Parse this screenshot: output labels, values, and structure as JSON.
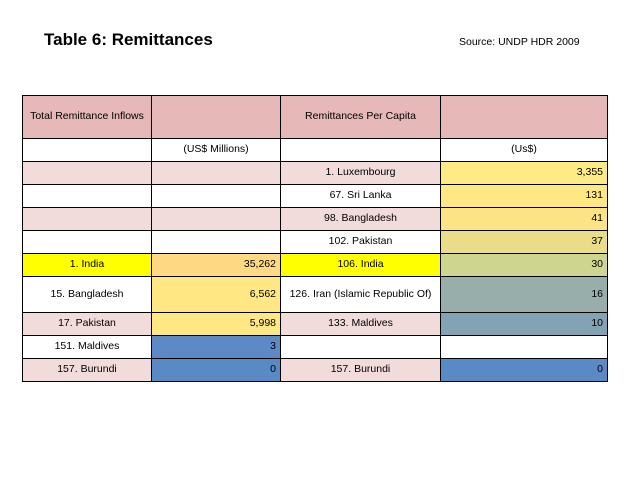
{
  "title": "Table 6: Remittances",
  "source": "Source: UNDP HDR 2009",
  "header": {
    "left_title": "Total Remittance Inflows",
    "right_title": "Remittances Per Capita",
    "left_unit": "(US$ Millions)",
    "right_unit": "(Us$)"
  },
  "rows": [
    {
      "c1": "",
      "c2": "",
      "c3": "1. Luxembourg",
      "c4": "3,355",
      "bg1": "#f2dcdb",
      "bg2": "#f2dcdb",
      "bg3": "#f2dcdb",
      "bg4": "#ffeb84"
    },
    {
      "c1": "",
      "c2": "",
      "c3": "67. Sri Lanka",
      "c4": "131",
      "bg1": "#ffffff",
      "bg2": "#ffffff",
      "bg3": "#ffffff",
      "bg4": "#ffe884"
    },
    {
      "c1": "",
      "c2": "",
      "c3": "98. Bangladesh",
      "c4": "41",
      "bg1": "#f2dcdb",
      "bg2": "#f2dcdb",
      "bg3": "#f2dcdb",
      "bg4": "#fbe386"
    },
    {
      "c1": "",
      "c2": "",
      "c3": "102. Pakistan",
      "c4": "37",
      "bg1": "#ffffff",
      "bg2": "#ffffff",
      "bg3": "#ffffff",
      "bg4": "#e9dd8a"
    },
    {
      "c1": "1. India",
      "c2": "35,262",
      "c3": "106. India",
      "c4": "30",
      "bg1": "#ffff00",
      "bg2": "#ffd884",
      "bg3": "#ffff00",
      "bg4": "#ced58e"
    },
    {
      "c1": "15. Bangladesh",
      "c2": "6,562",
      "c3": "126. Iran (Islamic Republic Of)",
      "c4": "16",
      "bg1": "#ffffff",
      "bg2": "#ffe784",
      "bg3": "#ffffff",
      "bg4": "#97aeaa"
    },
    {
      "c1": "17. Pakistan",
      "c2": "5,998",
      "c3": "133. Maldives",
      "c4": "10",
      "bg1": "#f2dcdb",
      "bg2": "#ffe784",
      "bg3": "#f2dcdb",
      "bg4": "#83a2b4"
    },
    {
      "c1": "151. Maldives",
      "c2": "3",
      "c3": "",
      "c4": "",
      "bg1": "#ffffff",
      "bg2": "#5d8ac7",
      "bg3": "#ffffff",
      "bg4": "#ffffff"
    },
    {
      "c1": "157. Burundi",
      "c2": "0",
      "c3": "157. Burundi",
      "c4": "0",
      "bg1": "#f2dcdb",
      "bg2": "#5a8ac6",
      "bg3": "#f2dcdb",
      "bg4": "#5a8ac6"
    }
  ]
}
